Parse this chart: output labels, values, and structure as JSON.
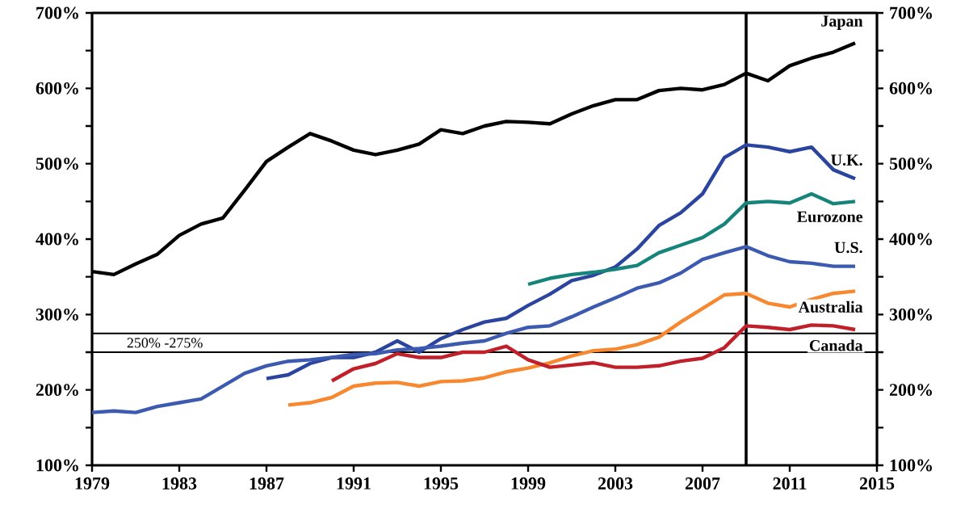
{
  "chart_data": {
    "type": "line",
    "xlim": [
      1979,
      2015
    ],
    "xticks": [
      1979,
      1983,
      1987,
      1991,
      1995,
      1999,
      2003,
      2007,
      2011,
      2015
    ],
    "ylim": [
      100,
      700
    ],
    "yticks": [
      {
        "value": 100,
        "label": "100%"
      },
      {
        "value": 150,
        "label": null
      },
      {
        "value": 200,
        "label": "200%"
      },
      {
        "value": 250,
        "label": null
      },
      {
        "value": 300,
        "label": "300%"
      },
      {
        "value": 350,
        "label": null
      },
      {
        "value": 400,
        "label": "400%"
      },
      {
        "value": 450,
        "label": null
      },
      {
        "value": 500,
        "label": "500%"
      },
      {
        "value": 550,
        "label": null
      },
      {
        "value": 600,
        "label": "600%"
      },
      {
        "value": 650,
        "label": null
      },
      {
        "value": 700,
        "label": "700%"
      }
    ],
    "y2lim": [
      100,
      700
    ],
    "y2ticks": [
      {
        "value": 100,
        "label": "100%"
      },
      {
        "value": 150,
        "label": null
      },
      {
        "value": 200,
        "label": "200%"
      },
      {
        "value": 250,
        "label": null
      },
      {
        "value": 300,
        "label": "300%"
      },
      {
        "value": 350,
        "label": null
      },
      {
        "value": 400,
        "label": "400%"
      },
      {
        "value": 450,
        "label": null
      },
      {
        "value": 500,
        "label": "500%"
      },
      {
        "value": 550,
        "label": null
      },
      {
        "value": 600,
        "label": "600%"
      },
      {
        "value": 650,
        "label": null
      },
      {
        "value": 700,
        "label": "700%"
      }
    ],
    "series": [
      {
        "name": "Japan",
        "color": "#000000",
        "x": [
          1979,
          1980,
          1981,
          1982,
          1983,
          1984,
          1985,
          1986,
          1987,
          1988,
          1989,
          1990,
          1991,
          1992,
          1993,
          1994,
          1995,
          1996,
          1997,
          1998,
          1999,
          2000,
          2001,
          2002,
          2003,
          2004,
          2005,
          2006,
          2007,
          2008,
          2009,
          2010,
          2011,
          2012,
          2013,
          2014
        ],
        "values": [
          357,
          353,
          367,
          380,
          405,
          420,
          428,
          465,
          503,
          522,
          540,
          530,
          518,
          512,
          518,
          526,
          545,
          540,
          550,
          556,
          555,
          553,
          566,
          577,
          585,
          585,
          597,
          600,
          598,
          605,
          620,
          610,
          630,
          640,
          648,
          660
        ]
      },
      {
        "name": "U.K.",
        "color": "#2b449e",
        "x": [
          1987,
          1988,
          1989,
          1990,
          1991,
          1992,
          1993,
          1994,
          1995,
          1996,
          1997,
          1998,
          1999,
          2000,
          2001,
          2002,
          2003,
          2004,
          2005,
          2006,
          2007,
          2008,
          2009,
          2010,
          2011,
          2012,
          2013,
          2014
        ],
        "values": [
          215,
          220,
          235,
          243,
          243,
          250,
          265,
          250,
          268,
          280,
          290,
          295,
          312,
          327,
          345,
          352,
          363,
          387,
          418,
          435,
          460,
          508,
          525,
          522,
          516,
          522,
          492,
          480
        ]
      },
      {
        "name": "Eurozone",
        "color": "#16847a",
        "x": [
          1999,
          2000,
          2001,
          2002,
          2003,
          2004,
          2005,
          2006,
          2007,
          2008,
          2009,
          2010,
          2011,
          2012,
          2013,
          2014
        ],
        "values": [
          340,
          348,
          353,
          356,
          360,
          365,
          382,
          392,
          402,
          420,
          448,
          450,
          448,
          460,
          447,
          450
        ]
      },
      {
        "name": "U.S.",
        "color": "#3c5bb0",
        "x": [
          1979,
          1980,
          1981,
          1982,
          1983,
          1984,
          1985,
          1986,
          1987,
          1988,
          1989,
          1990,
          1991,
          1992,
          1993,
          1994,
          1995,
          1996,
          1997,
          1998,
          1999,
          2000,
          2001,
          2002,
          2003,
          2004,
          2005,
          2006,
          2007,
          2008,
          2009,
          2010,
          2011,
          2012,
          2013,
          2014
        ],
        "values": [
          170,
          172,
          170,
          178,
          183,
          188,
          205,
          222,
          232,
          238,
          240,
          243,
          247,
          248,
          253,
          255,
          258,
          262,
          265,
          275,
          283,
          285,
          297,
          310,
          322,
          335,
          342,
          355,
          373,
          382,
          390,
          378,
          370,
          368,
          364,
          364
        ]
      },
      {
        "name": "Australia",
        "color": "#f7882f",
        "x": [
          1988,
          1989,
          1990,
          1991,
          1992,
          1993,
          1994,
          1995,
          1996,
          1997,
          1998,
          1999,
          2000,
          2001,
          2002,
          2003,
          2004,
          2005,
          2006,
          2007,
          2008,
          2009,
          2010,
          2011,
          2012,
          2013,
          2014
        ],
        "values": [
          180,
          183,
          190,
          205,
          209,
          210,
          205,
          211,
          212,
          216,
          224,
          229,
          236,
          245,
          252,
          254,
          260,
          270,
          290,
          308,
          326,
          328,
          315,
          310,
          320,
          328,
          331
        ]
      },
      {
        "name": "Canada",
        "color": "#c0202a",
        "x": [
          1990,
          1991,
          1992,
          1993,
          1994,
          1995,
          1996,
          1997,
          1998,
          1999,
          2000,
          2001,
          2002,
          2003,
          2004,
          2005,
          2006,
          2007,
          2008,
          2009,
          2010,
          2011,
          2012,
          2013,
          2014
        ],
        "values": [
          212,
          228,
          235,
          248,
          243,
          243,
          250,
          250,
          258,
          240,
          230,
          233,
          236,
          230,
          230,
          232,
          238,
          242,
          256,
          285,
          283,
          280,
          286,
          285,
          280
        ]
      }
    ],
    "annotations": [
      "250% -275%"
    ],
    "ref_lines": [
      {
        "axis": "y",
        "value": 250,
        "color": "#000000"
      },
      {
        "axis": "y",
        "value": 275,
        "color": "#000000"
      },
      {
        "axis": "x",
        "value": 2009,
        "color": "#000000"
      }
    ]
  }
}
